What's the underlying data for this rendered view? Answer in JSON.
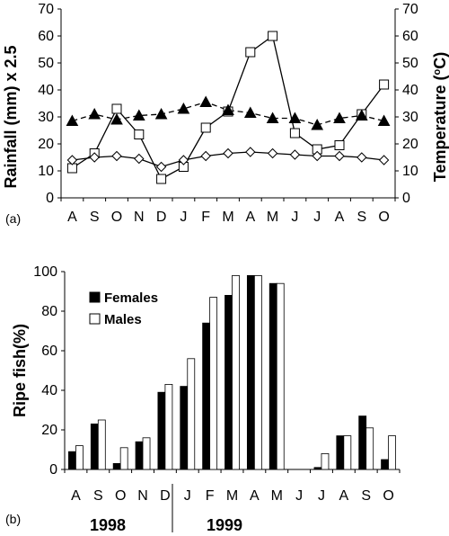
{
  "chart_data": [
    {
      "id": "a",
      "type": "line",
      "panel_label": "(a)",
      "title": "",
      "categories": [
        "A",
        "S",
        "O",
        "N",
        "D",
        "J",
        "F",
        "M",
        "A",
        "M",
        "J",
        "J",
        "A",
        "S",
        "O"
      ],
      "ylabel_left": "Rainfall (mm) x 2.5",
      "ylabel_right_main": "Temperature (",
      "ylabel_right_sup": "o",
      "ylabel_right_tail": "C)",
      "ylim": [
        0,
        70
      ],
      "yticks": [
        "0",
        "10",
        "20",
        "30",
        "40",
        "50",
        "60",
        "70"
      ],
      "grid": false,
      "series": [
        {
          "marker": "open-square",
          "line": "solid",
          "axis": "left",
          "values": [
            11,
            16.5,
            33,
            23.5,
            7,
            11.5,
            26,
            32,
            54,
            60,
            24,
            18,
            19.5,
            31,
            42
          ]
        },
        {
          "marker": "filled-triangle",
          "line": "dashed",
          "axis": "right",
          "values": [
            28.5,
            31,
            29,
            30.5,
            31,
            33,
            35.5,
            32.5,
            31.5,
            29.5,
            29.5,
            27,
            29.5,
            30.5,
            28.5
          ]
        },
        {
          "marker": "open-diamond",
          "line": "solid",
          "axis": "right",
          "values": [
            14,
            15,
            15.5,
            14.5,
            11.5,
            14,
            15.5,
            16.5,
            17,
            16.5,
            16,
            15.5,
            15.5,
            15,
            14
          ]
        }
      ]
    },
    {
      "id": "b",
      "type": "bar",
      "panel_label": "(b)",
      "title": "",
      "categories": [
        "A",
        "S",
        "O",
        "N",
        "D",
        "J",
        "F",
        "M",
        "A",
        "M",
        "J",
        "J",
        "A",
        "S",
        "O"
      ],
      "ylabel": "Ripe fish(%)",
      "ylim": [
        0,
        100
      ],
      "yticks": [
        "0",
        "20",
        "40",
        "60",
        "80",
        "100"
      ],
      "grid": false,
      "legend_position": "top-left",
      "years": [
        "1998",
        "1999"
      ],
      "series": [
        {
          "name": "Females",
          "color": "#000000",
          "values": [
            9,
            23,
            3,
            14,
            39,
            42,
            74,
            88,
            98,
            94,
            0,
            1,
            17,
            27,
            5
          ]
        },
        {
          "name": "Males",
          "color": "#ffffff",
          "values": [
            12,
            25,
            11,
            16,
            43,
            56,
            87,
            98,
            98,
            94,
            0,
            8,
            17,
            21,
            17
          ]
        }
      ]
    }
  ]
}
